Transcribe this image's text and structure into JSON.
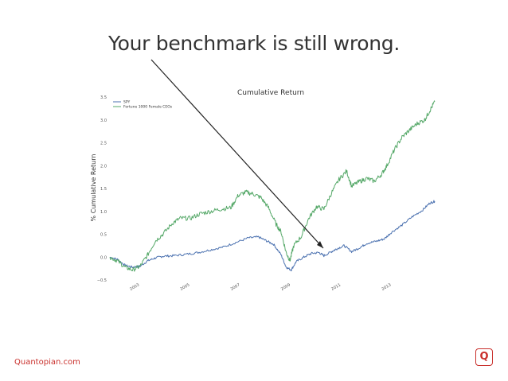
{
  "headline": "Your benchmark is still wrong.",
  "footer": {
    "link_text": "Quantopian.com",
    "logo_glyph": "Q"
  },
  "colors": {
    "spy": "#4c72b0",
    "ceo": "#55a868",
    "arrow": "#222222",
    "brand": "#c9302c"
  },
  "chart_data": {
    "type": "line",
    "title": "Cumulative Return",
    "ylabel": "% Cumulative Return",
    "xlabel": "",
    "xlim": [
      2002.0,
      2014.9
    ],
    "ylim": [
      -0.5,
      3.5
    ],
    "yticks": [
      -0.5,
      0.0,
      0.5,
      1.0,
      1.5,
      2.0,
      2.5,
      3.0,
      3.5
    ],
    "ytick_labels": [
      "−0.5",
      "0.0",
      "0.5",
      "1.0",
      "1.5",
      "2.0",
      "2.5",
      "3.0",
      "3.5"
    ],
    "xticks": [
      2003,
      2005,
      2007,
      2009,
      2011,
      2013
    ],
    "xtick_labels": [
      "2003",
      "2005",
      "2007",
      "2009",
      "2011",
      "2013"
    ],
    "grid": false,
    "legend_position": "top-left",
    "series": [
      {
        "name": "SPY",
        "color": "#4c72b0",
        "points": [
          [
            2002.0,
            0.0
          ],
          [
            2002.3,
            -0.05
          ],
          [
            2002.6,
            -0.18
          ],
          [
            2002.9,
            -0.22
          ],
          [
            2003.2,
            -0.2
          ],
          [
            2003.5,
            -0.08
          ],
          [
            2003.8,
            -0.02
          ],
          [
            2004.1,
            0.02
          ],
          [
            2004.5,
            0.03
          ],
          [
            2005.0,
            0.06
          ],
          [
            2005.5,
            0.1
          ],
          [
            2006.0,
            0.16
          ],
          [
            2006.5,
            0.22
          ],
          [
            2007.0,
            0.32
          ],
          [
            2007.5,
            0.42
          ],
          [
            2007.9,
            0.44
          ],
          [
            2008.2,
            0.36
          ],
          [
            2008.5,
            0.28
          ],
          [
            2008.8,
            0.05
          ],
          [
            2009.0,
            -0.22
          ],
          [
            2009.2,
            -0.28
          ],
          [
            2009.4,
            -0.1
          ],
          [
            2009.7,
            0.0
          ],
          [
            2010.0,
            0.08
          ],
          [
            2010.3,
            0.1
          ],
          [
            2010.5,
            0.03
          ],
          [
            2010.8,
            0.12
          ],
          [
            2011.0,
            0.18
          ],
          [
            2011.3,
            0.25
          ],
          [
            2011.6,
            0.12
          ],
          [
            2011.9,
            0.2
          ],
          [
            2012.2,
            0.3
          ],
          [
            2012.6,
            0.35
          ],
          [
            2012.9,
            0.4
          ],
          [
            2013.2,
            0.55
          ],
          [
            2013.6,
            0.7
          ],
          [
            2014.0,
            0.88
          ],
          [
            2014.4,
            1.02
          ],
          [
            2014.7,
            1.18
          ],
          [
            2014.9,
            1.22
          ]
        ]
      },
      {
        "name": "Fortune 1000 Female CEOs",
        "color": "#55a868",
        "points": [
          [
            2002.0,
            0.0
          ],
          [
            2002.3,
            -0.08
          ],
          [
            2002.6,
            -0.22
          ],
          [
            2002.9,
            -0.28
          ],
          [
            2003.2,
            -0.2
          ],
          [
            2003.5,
            0.05
          ],
          [
            2003.8,
            0.35
          ],
          [
            2004.1,
            0.5
          ],
          [
            2004.5,
            0.75
          ],
          [
            2004.8,
            0.85
          ],
          [
            2005.2,
            0.85
          ],
          [
            2005.6,
            0.95
          ],
          [
            2006.0,
            1.0
          ],
          [
            2006.4,
            1.05
          ],
          [
            2006.8,
            1.08
          ],
          [
            2007.1,
            1.35
          ],
          [
            2007.4,
            1.42
          ],
          [
            2007.7,
            1.38
          ],
          [
            2008.0,
            1.3
          ],
          [
            2008.3,
            1.08
          ],
          [
            2008.6,
            0.72
          ],
          [
            2008.8,
            0.55
          ],
          [
            2009.0,
            0.1
          ],
          [
            2009.15,
            -0.08
          ],
          [
            2009.3,
            0.25
          ],
          [
            2009.6,
            0.45
          ],
          [
            2009.9,
            0.85
          ],
          [
            2010.2,
            1.1
          ],
          [
            2010.5,
            1.05
          ],
          [
            2010.8,
            1.4
          ],
          [
            2011.1,
            1.7
          ],
          [
            2011.4,
            1.88
          ],
          [
            2011.6,
            1.55
          ],
          [
            2011.9,
            1.65
          ],
          [
            2012.2,
            1.72
          ],
          [
            2012.5,
            1.66
          ],
          [
            2012.8,
            1.82
          ],
          [
            2013.0,
            2.0
          ],
          [
            2013.3,
            2.35
          ],
          [
            2013.6,
            2.62
          ],
          [
            2013.9,
            2.78
          ],
          [
            2014.2,
            2.92
          ],
          [
            2014.5,
            3.0
          ],
          [
            2014.7,
            3.2
          ],
          [
            2014.9,
            3.4
          ]
        ]
      }
    ]
  }
}
